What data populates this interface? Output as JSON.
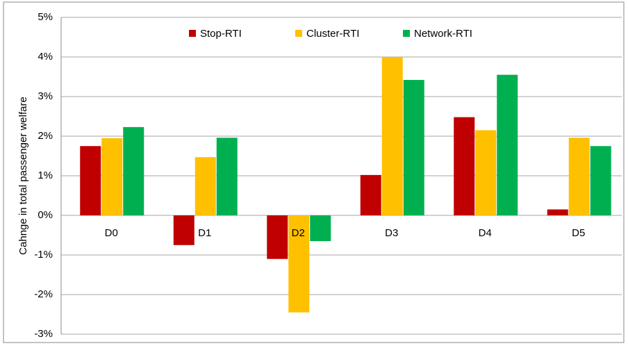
{
  "chart_data": {
    "type": "bar",
    "y_label": "Cahnge in total passenger welfare",
    "categories": [
      "D0",
      "D1",
      "D2",
      "D3",
      "D4",
      "D5"
    ],
    "series": [
      {
        "name": "Stop-RTI",
        "color": "#c00000",
        "values": [
          1.75,
          -0.75,
          -1.1,
          1.02,
          2.48,
          0.15
        ]
      },
      {
        "name": "Cluster-RTI",
        "color": "#ffc000",
        "values": [
          1.95,
          1.47,
          -2.45,
          4.0,
          2.15,
          1.96
        ]
      },
      {
        "name": "Network-RTI",
        "color": "#00b050",
        "values": [
          2.23,
          1.96,
          -0.65,
          3.42,
          3.55,
          1.75
        ]
      }
    ],
    "ylim": [
      -3,
      5
    ],
    "yticks": [
      {
        "value": -3,
        "label": "-3%"
      },
      {
        "value": -2,
        "label": "-2%"
      },
      {
        "value": -1,
        "label": "-1%"
      },
      {
        "value": 0,
        "label": "0%"
      },
      {
        "value": 1,
        "label": "1%"
      },
      {
        "value": 2,
        "label": "2%"
      },
      {
        "value": 3,
        "label": "3%"
      },
      {
        "value": 4,
        "label": "4%"
      },
      {
        "value": 5,
        "label": "5%"
      }
    ],
    "grid": true,
    "legend": "top"
  }
}
